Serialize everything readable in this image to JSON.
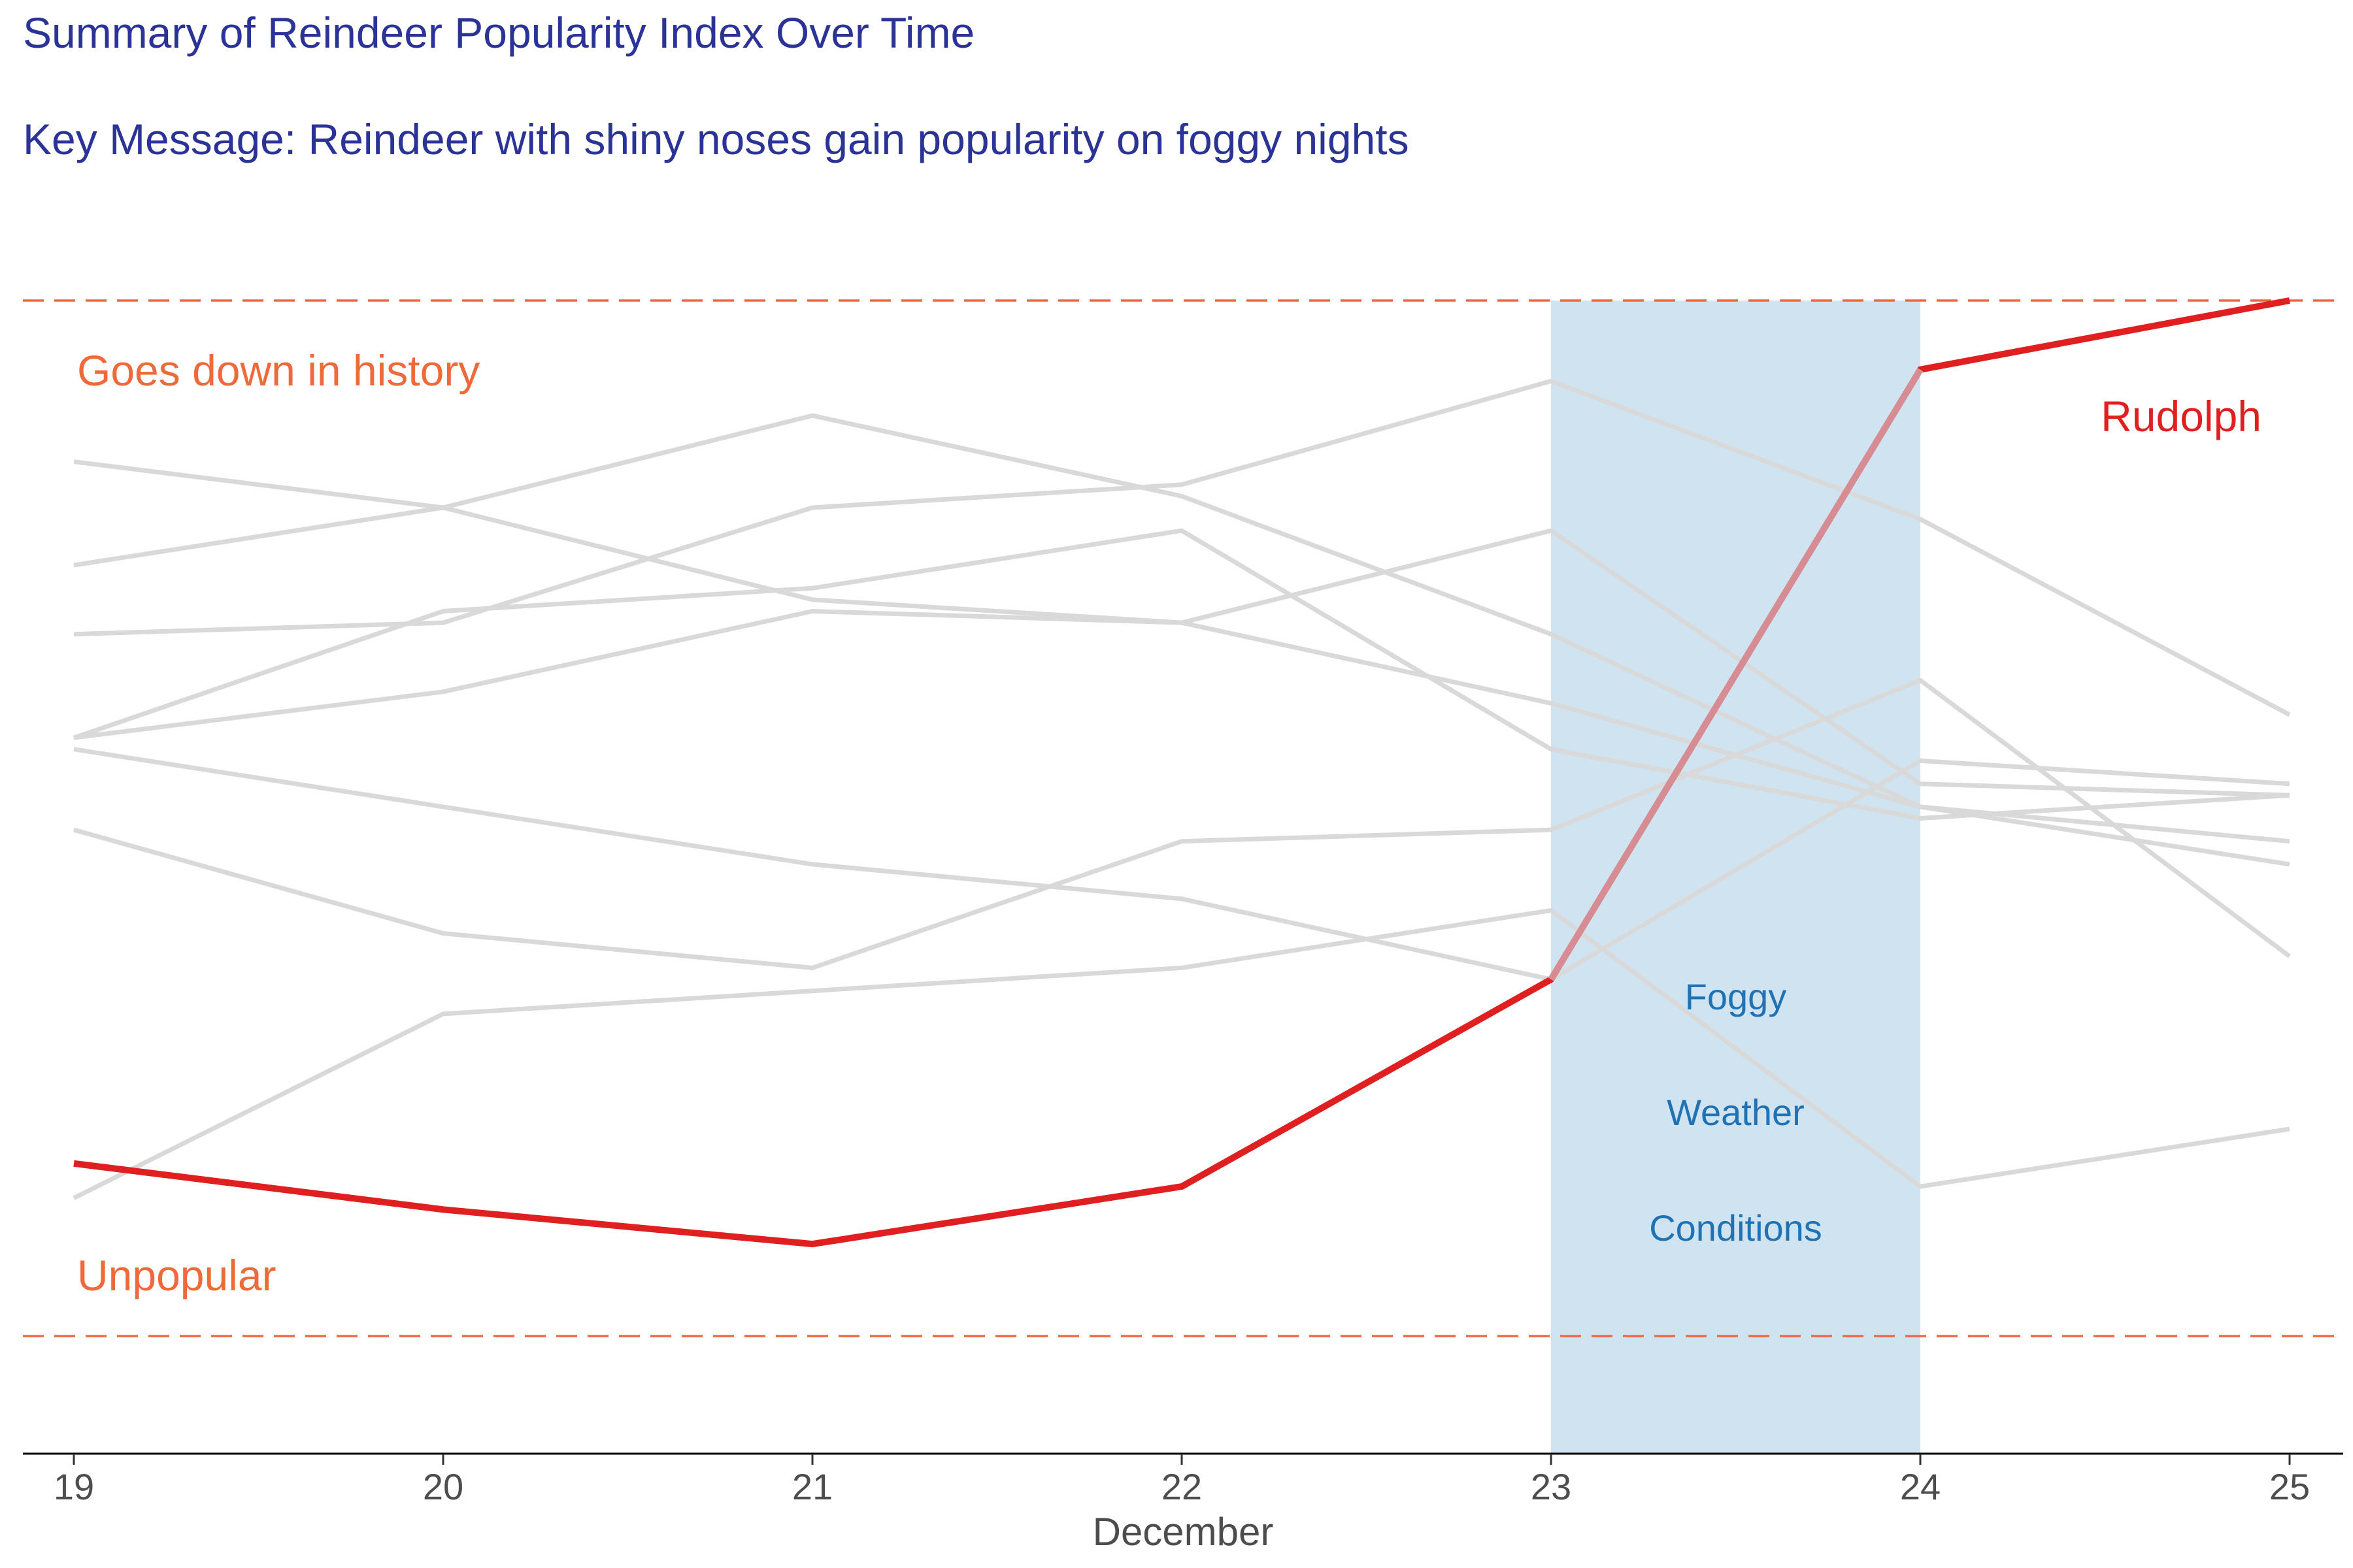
{
  "title": "Summary of Reindeer Popularity Index Over Time",
  "subtitle": "Key Message: Reindeer with shiny noses gain popularity on foggy nights",
  "colors": {
    "title": "#2b3496",
    "highlight": "#e02020",
    "background_series": "#d9d9d9",
    "reference_line": "#ef6a3a",
    "band_fill": "#cfe3f0",
    "band_text": "#1f72b4"
  },
  "chart_data": {
    "type": "line",
    "x": [
      19,
      20,
      21,
      22,
      23,
      24,
      25
    ],
    "xlabel": "December",
    "ylabel": "",
    "xlim": [
      18.85,
      25.15
    ],
    "ylim": [
      0,
      1
    ],
    "grid": false,
    "reference_lines": [
      {
        "y": 1.0,
        "label": "Goes down in history",
        "style": "dashed"
      },
      {
        "y": 0.1,
        "label": "Unpopular",
        "style": "dashed"
      }
    ],
    "highlight_band": {
      "x_start": 23,
      "x_end": 24,
      "label": [
        "Foggy",
        "Weather",
        "Conditions"
      ]
    },
    "highlight_series": {
      "name": "Rudolph",
      "values": [
        0.25,
        0.21,
        0.18,
        0.23,
        0.41,
        0.94,
        1.0
      ]
    },
    "background_series": [
      {
        "values": [
          0.86,
          0.82,
          0.74,
          0.72,
          0.65,
          0.56,
          0.51
        ]
      },
      {
        "values": [
          0.77,
          0.82,
          0.9,
          0.83,
          0.71,
          0.56,
          0.53
        ]
      },
      {
        "values": [
          0.71,
          0.72,
          0.82,
          0.84,
          0.93,
          0.81,
          0.64
        ]
      },
      {
        "values": [
          0.62,
          0.66,
          0.73,
          0.72,
          0.8,
          0.58,
          0.57
        ]
      },
      {
        "values": [
          0.61,
          0.56,
          0.51,
          0.48,
          0.41,
          0.6,
          0.58
        ]
      },
      {
        "values": [
          0.54,
          0.45,
          0.42,
          0.53,
          0.54,
          0.67,
          0.43
        ]
      },
      {
        "values": [
          0.22,
          0.38,
          0.4,
          0.42,
          0.47,
          0.23,
          0.28
        ]
      },
      {
        "values": [
          0.62,
          0.73,
          0.75,
          0.8,
          0.61,
          0.55,
          0.57
        ]
      }
    ]
  }
}
